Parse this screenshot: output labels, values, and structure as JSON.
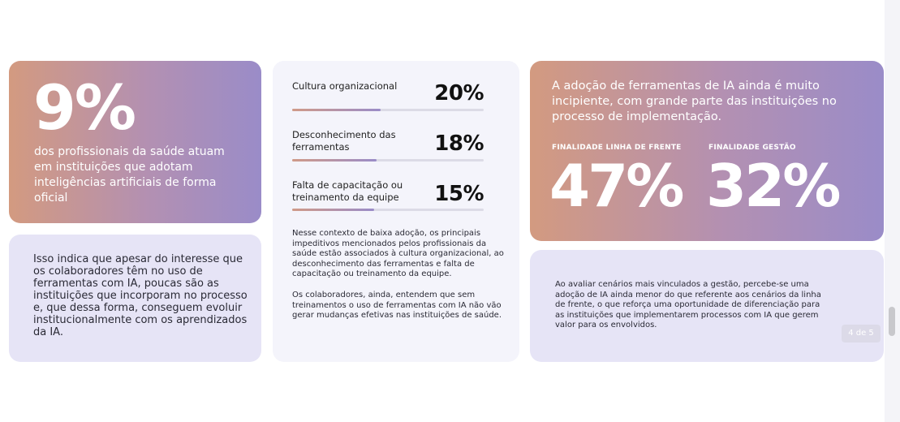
{
  "card1": {
    "big_value": "9%",
    "text": "dos profissionais da saúde atuam em instituições que adotam inteligências artificiais de forma oficial"
  },
  "card2": {
    "text": "Isso indica que apesar do interesse que os colaboradores têm no uso de ferramentas com IA, poucas são as instituições que incorporam no processo e, que dessa forma, conseguem evoluir institucionalmente com os aprendizados da IA."
  },
  "card3": {
    "stats": [
      {
        "label": "Cultura organizacional",
        "value": "20%",
        "fill": 0.46
      },
      {
        "label": "Desconhecimento das ferramentas",
        "value": "18%",
        "fill": 0.44
      },
      {
        "label": "Falta de capacitação ou treinamento da equipe",
        "value": "15%",
        "fill": 0.43
      }
    ],
    "paragraph1": "Nesse contexto de baixa adoção, os principais impeditivos mencionados pelos profissionais da saúde estão associados à cultura organizacional, ao desconhecimento das ferramentas e falta de capacitação ou treinamento da equipe.",
    "paragraph2": "Os colaboradores, ainda, entendem que sem treinamentos o uso de ferramentas com IA não vão gerar mudanças efetivas nas instituições de saúde."
  },
  "card4": {
    "headline": "A adoção de ferramentas de IA ainda é muito incipiente, com grande parte das instituições no processo de implementação.",
    "left_label": "FINALIDADE LINHA DE FRENTE",
    "left_value": "47%",
    "right_label": "FINALIDADE GESTÃO",
    "right_value": "32%"
  },
  "card5": {
    "text": "Ao avaliar cenários mais vinculados a gestão, percebe-se uma adoção de IA ainda menor do que referente aos cenários da linha de frente, o que reforça uma oportunidade de diferenciação para as instituições que implementarem processos com IA que gerem valor para os envolvidos.",
    "pager": "4 de 5"
  },
  "colors": {
    "gradient_start": "#d39a80",
    "gradient_end": "#9a8cc8",
    "lavender": "#e6e4f6",
    "pale": "#f4f4fb"
  }
}
